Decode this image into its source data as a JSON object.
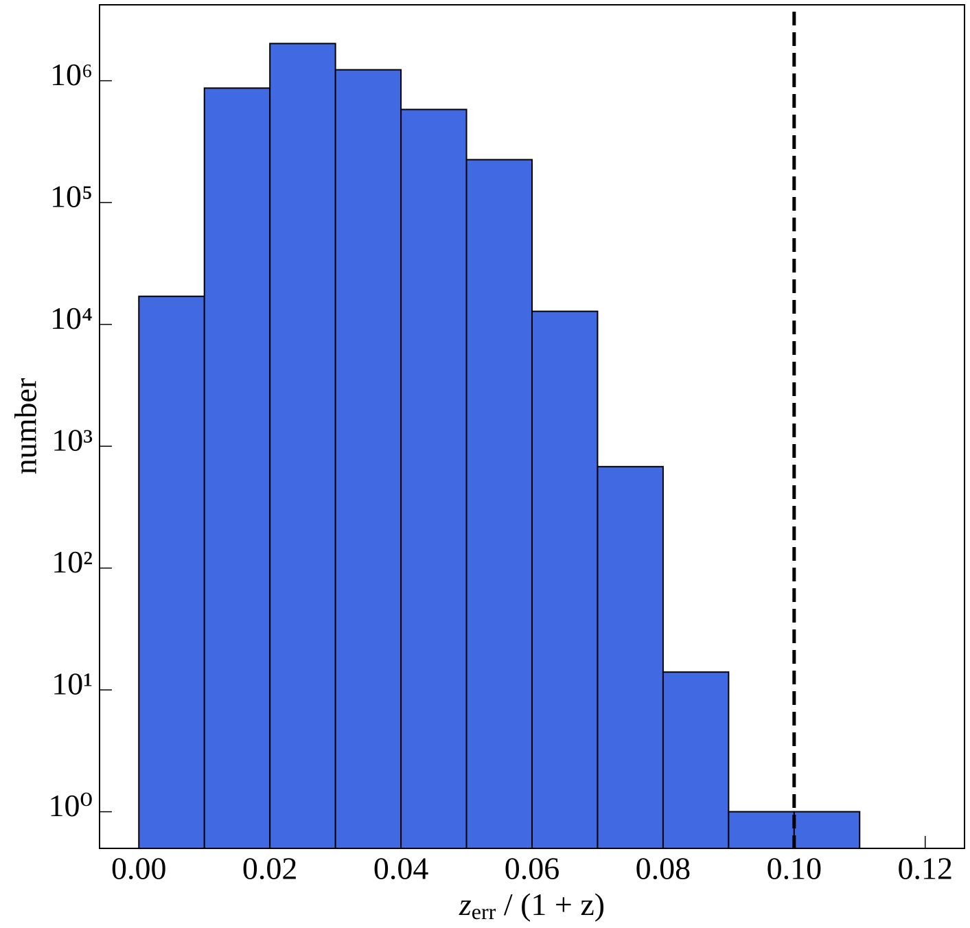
{
  "chart_data": {
    "type": "histogram",
    "bins": [
      0,
      0.01,
      0.02,
      0.03,
      0.04,
      0.05,
      0.06,
      0.07,
      0.08,
      0.09,
      0.1,
      0.11
    ],
    "counts": [
      17000,
      870000,
      2020000,
      1230000,
      581000,
      225000,
      12800,
      680,
      14,
      1,
      1
    ],
    "color": "#4169e1",
    "ylabel": "number",
    "xlabel": {
      "base": "z",
      "subscript": "err",
      "rest": " / (1 + z)"
    },
    "xlim": [
      -0.006,
      0.126
    ],
    "ylim": [
      0.5,
      4200000
    ],
    "yscale": "log",
    "xticks": [
      {
        "value": 0,
        "label": "0.00"
      },
      {
        "value": 0.02,
        "label": "0.02"
      },
      {
        "value": 0.04,
        "label": "0.04"
      },
      {
        "value": 0.06,
        "label": "0.06"
      },
      {
        "value": 0.08,
        "label": "0.08"
      },
      {
        "value": 0.1,
        "label": "0.10"
      },
      {
        "value": 0.12,
        "label": "0.12"
      }
    ],
    "yticks": [
      {
        "value": 1,
        "label": "10⁰"
      },
      {
        "value": 10,
        "label": "10¹"
      },
      {
        "value": 100,
        "label": "10²"
      },
      {
        "value": 1000,
        "label": "10³"
      },
      {
        "value": 10000,
        "label": "10⁴"
      },
      {
        "value": 100000,
        "label": "10⁵"
      },
      {
        "value": 1000000,
        "label": "10⁶"
      }
    ],
    "vline": 0.1
  }
}
